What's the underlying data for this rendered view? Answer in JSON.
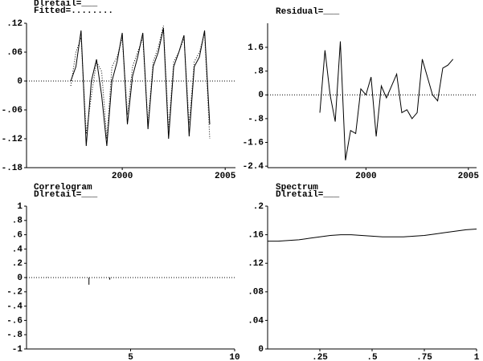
{
  "chart_data": [
    {
      "type": "line",
      "x": [
        1997.5,
        1997.75,
        1998,
        1998.25,
        1998.5,
        1998.75,
        1999,
        1999.25,
        1999.5,
        1999.75,
        2000,
        2000.25,
        2000.5,
        2000.75,
        2001,
        2001.25,
        2001.5,
        2001.75,
        2002,
        2002.25,
        2002.5,
        2002.75,
        2003,
        2003.25,
        2003.5,
        2003.75,
        2004,
        2004.25
      ],
      "series": [
        {
          "name": "Dlretail=___",
          "color": "#000000",
          "style": "solid",
          "values": [
            0.0,
            0.03,
            0.105,
            -0.135,
            0.0,
            0.045,
            -0.03,
            -0.135,
            0.0,
            0.04,
            0.1,
            -0.09,
            0.01,
            0.05,
            0.1,
            -0.1,
            0.03,
            0.06,
            0.11,
            -0.12,
            0.03,
            0.06,
            0.095,
            -0.115,
            0.03,
            0.05,
            0.105,
            -0.09
          ]
        },
        {
          "name": "Fitted=........",
          "color": "#000000",
          "style": "dotted",
          "values": [
            -0.01,
            0.06,
            0.09,
            -0.11,
            -0.03,
            0.04,
            0.02,
            -0.12,
            0.03,
            0.05,
            0.09,
            -0.07,
            0.03,
            0.06,
            0.09,
            -0.09,
            0.04,
            0.07,
            0.115,
            -0.1,
            0.04,
            0.06,
            0.09,
            -0.09,
            0.04,
            0.06,
            0.1,
            -0.12
          ]
        }
      ],
      "xlim": [
        1995.35,
        2005.5
      ],
      "xticks": [
        2000,
        2005
      ],
      "ylim": [
        -0.18,
        0.12
      ],
      "yticks": [
        {
          "value": 0.12,
          "label": ".12"
        },
        {
          "value": 0.06,
          "label": ".06"
        },
        0,
        {
          "value": -0.06,
          "label": "-.06"
        },
        {
          "value": -0.12,
          "label": "-.12"
        },
        {
          "value": -0.18,
          "label": "-.18"
        }
      ],
      "zero_line": true
    },
    {
      "type": "line",
      "x": [
        1997.75,
        1998,
        1998.25,
        1998.5,
        1998.75,
        1999,
        1999.25,
        1999.5,
        1999.75,
        2000,
        2000.25,
        2000.5,
        2000.75,
        2001,
        2001.25,
        2001.5,
        2001.75,
        2002,
        2002.25,
        2002.5,
        2002.75,
        2003,
        2003.25,
        2003.5,
        2003.75,
        2004,
        2004.25
      ],
      "series": [
        {
          "name": "Residual=___",
          "color": "#000000",
          "style": "solid",
          "values": [
            -0.6,
            1.5,
            0.0,
            -0.9,
            1.8,
            -2.2,
            -1.2,
            -1.3,
            0.2,
            0.0,
            0.6,
            -1.4,
            0.3,
            -0.1,
            0.3,
            0.7,
            -0.6,
            -0.5,
            -0.8,
            -0.6,
            1.2,
            0.6,
            0.0,
            -0.2,
            0.9,
            1.0,
            1.2
          ]
        }
      ],
      "xlim": [
        1995.2,
        2005.4
      ],
      "xticks": [
        2000,
        2005
      ],
      "ylim": [
        -2.45,
        2.41
      ],
      "yticks": [
        1.6,
        {
          "value": 0.8,
          "label": ".8"
        },
        0,
        {
          "value": -0.8,
          "label": "-.8"
        },
        -1.6,
        -2.4
      ],
      "zero_line": true
    },
    {
      "type": "bar",
      "title": "Correlogram",
      "x": [
        1,
        2,
        3,
        4,
        5,
        6,
        7,
        8,
        9
      ],
      "series": [
        {
          "name": "Dlretail=___",
          "color": "#000000",
          "style": "solid",
          "values": [
            0.005,
            0.0,
            -0.1,
            -0.03,
            0.0,
            0.0,
            0.0,
            0.0,
            0.0
          ]
        }
      ],
      "xlim": [
        0,
        10
      ],
      "xticks": [
        5,
        10
      ],
      "ylim": [
        -1,
        1
      ],
      "yticks": [
        1,
        {
          "value": 0.8,
          "label": ".8"
        },
        {
          "value": 0.6,
          "label": ".6"
        },
        {
          "value": 0.4,
          "label": ".4"
        },
        {
          "value": 0.2,
          "label": ".2"
        },
        0,
        {
          "value": -0.2,
          "label": "-.2"
        },
        {
          "value": -0.4,
          "label": "-.4"
        },
        {
          "value": -0.6,
          "label": "-.6"
        },
        {
          "value": -0.8,
          "label": "-.8"
        },
        -1
      ],
      "zero_line": true
    },
    {
      "type": "line",
      "title": "Spectrum",
      "x": [
        0,
        0.05,
        0.1,
        0.15,
        0.2,
        0.25,
        0.3,
        0.35,
        0.4,
        0.45,
        0.5,
        0.55,
        0.6,
        0.65,
        0.7,
        0.75,
        0.8,
        0.85,
        0.9,
        0.95,
        1
      ],
      "series": [
        {
          "name": "Dlretail=___",
          "color": "#000000",
          "style": "solid",
          "values": [
            0.151,
            0.151,
            0.152,
            0.153,
            0.155,
            0.157,
            0.159,
            0.16,
            0.16,
            0.159,
            0.158,
            0.157,
            0.157,
            0.157,
            0.158,
            0.159,
            0.161,
            0.163,
            0.165,
            0.167,
            0.168
          ]
        }
      ],
      "xlim": [
        0,
        1
      ],
      "xticks": [
        {
          "value": 0.25,
          "label": ".25"
        },
        {
          "value": 0.5,
          "label": ".5"
        },
        {
          "value": 0.75,
          "label": ".75"
        },
        1
      ],
      "ylim": [
        0,
        0.2
      ],
      "yticks": [
        {
          "value": 0.2,
          "label": ".2"
        },
        {
          "value": 0.16,
          "label": ".16"
        },
        {
          "value": 0.12,
          "label": ".12"
        },
        {
          "value": 0.08,
          "label": ".08"
        },
        {
          "value": 0.04,
          "label": ".04"
        },
        0
      ],
      "zero_line": false
    }
  ]
}
